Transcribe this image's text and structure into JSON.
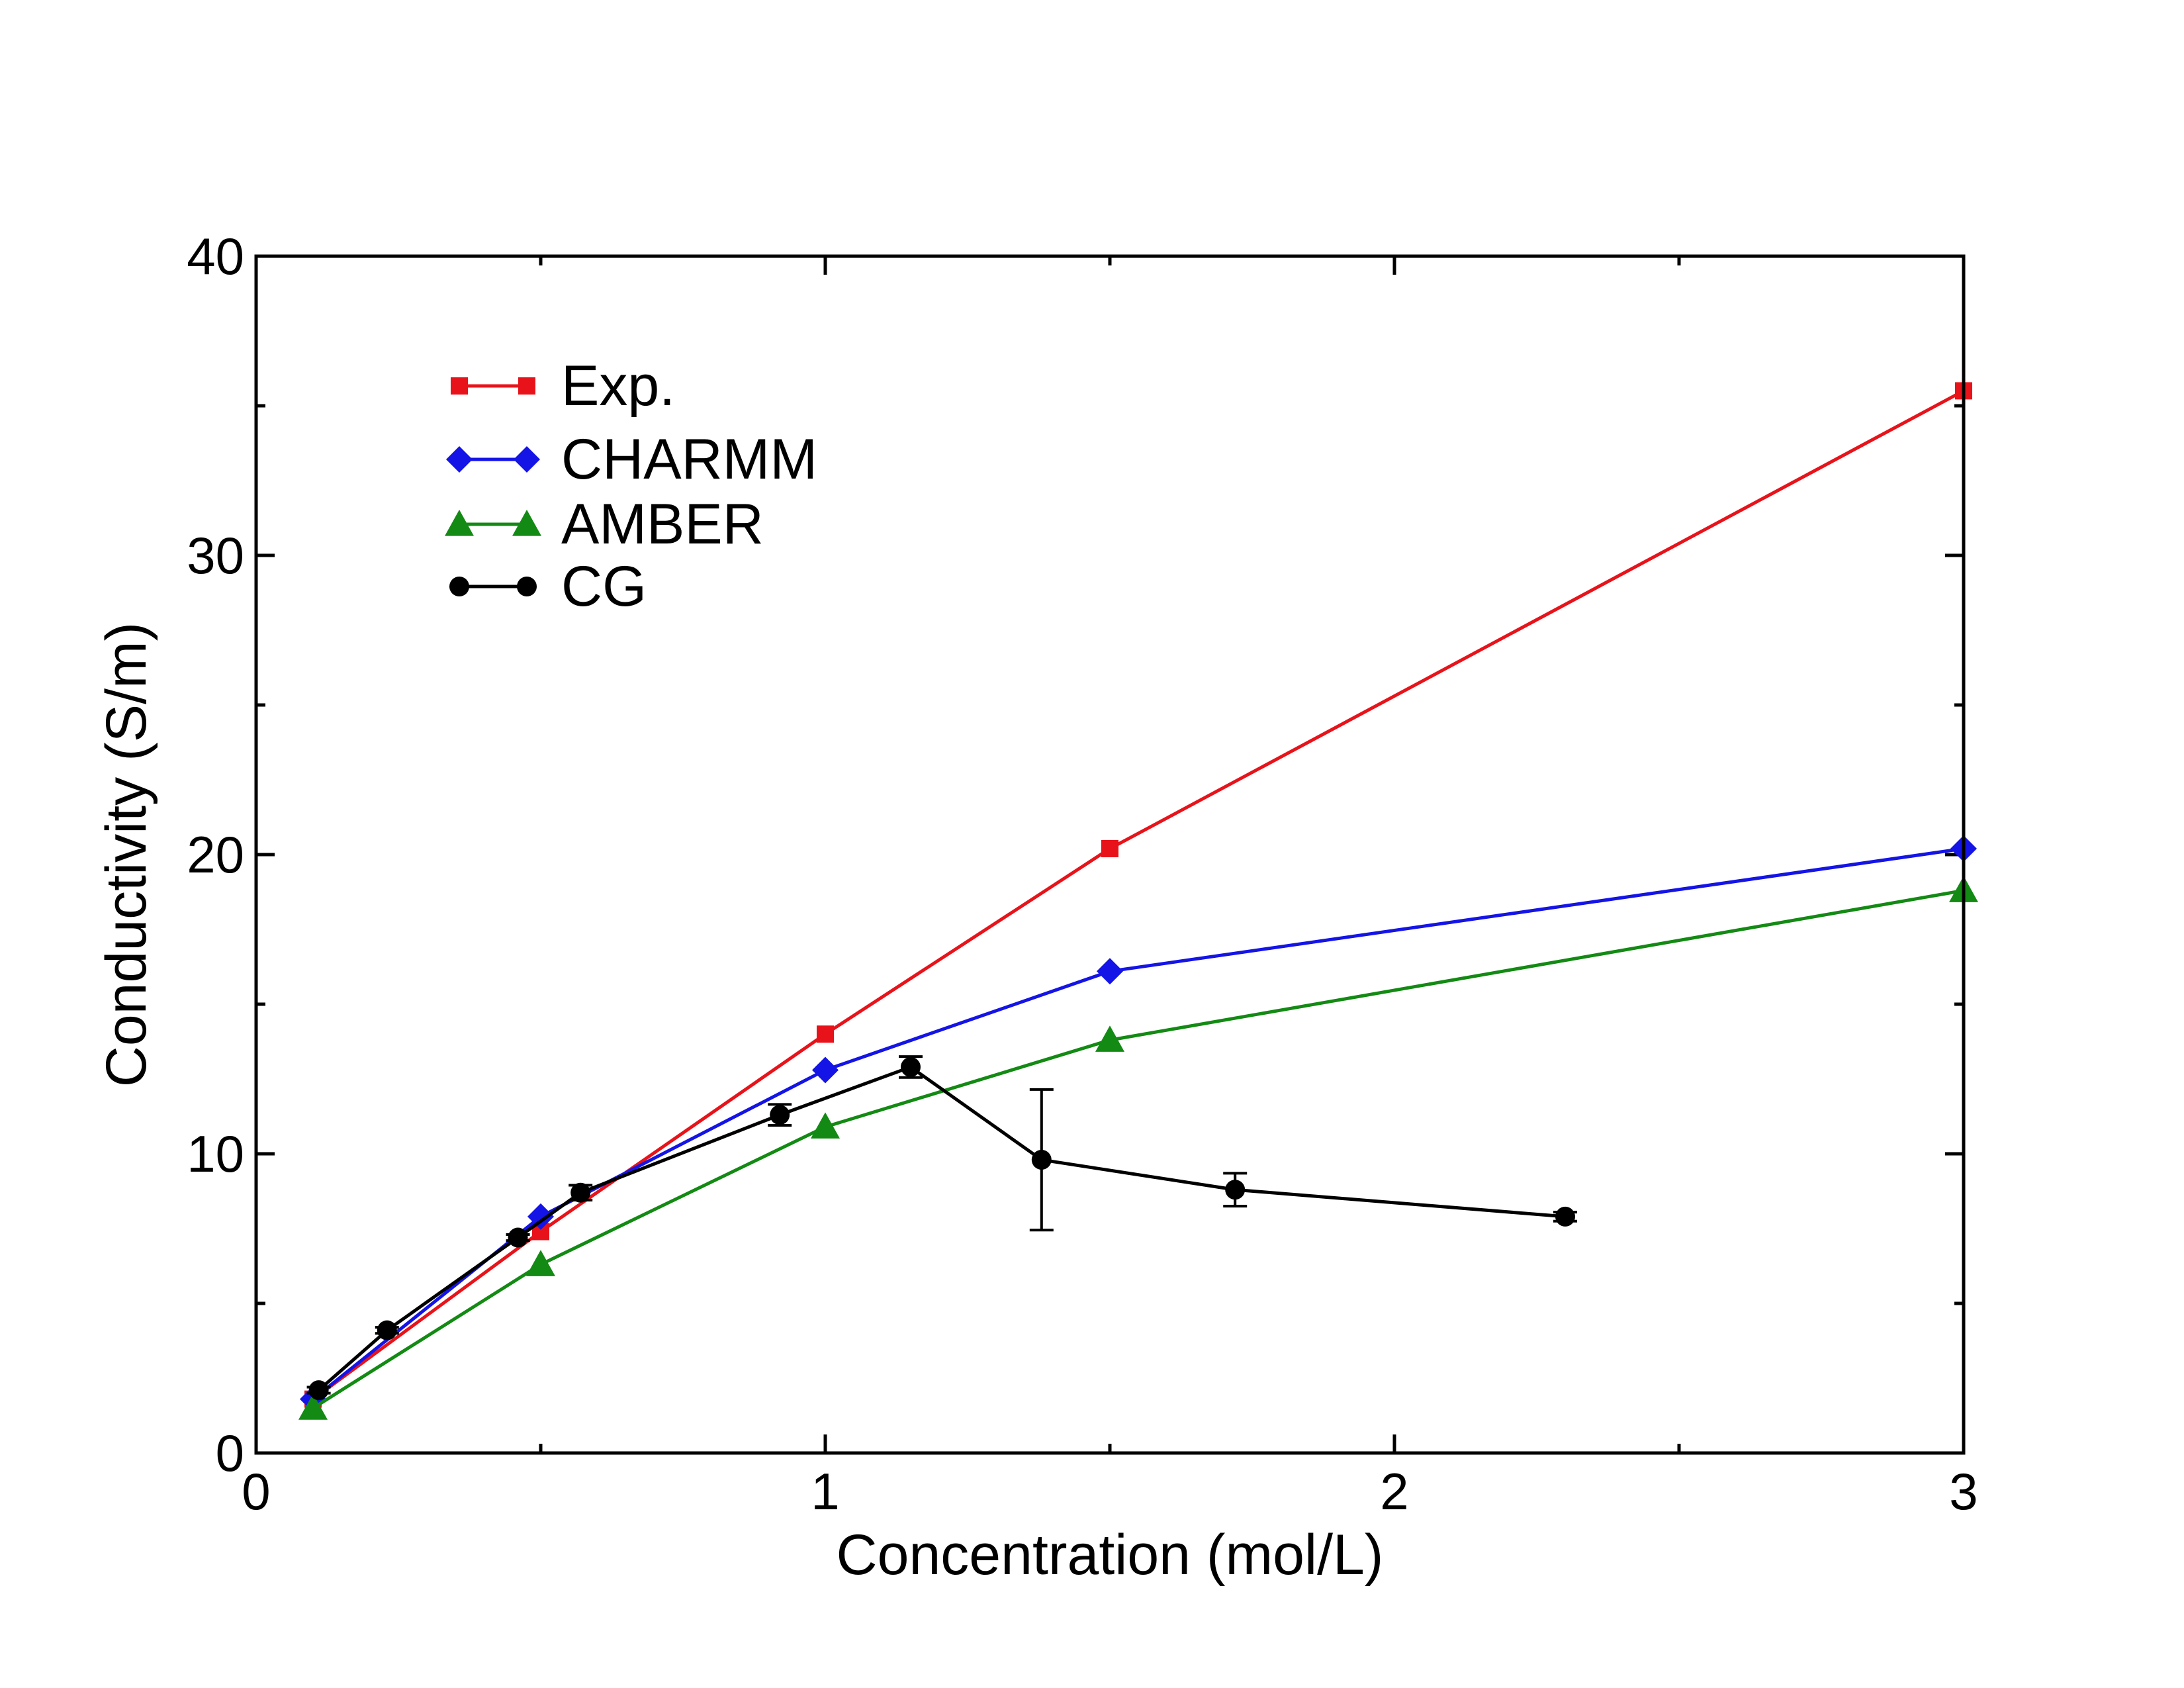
{
  "chart_data": {
    "type": "line",
    "title": "",
    "xlabel": "Concentration (mol/L)",
    "ylabel": "Conductivity (S/m)",
    "xlim": [
      0,
      3
    ],
    "ylim": [
      0,
      40
    ],
    "x_ticks": [
      0,
      1,
      2,
      3
    ],
    "x_tick_labels": [
      "0",
      "1",
      "2",
      "3"
    ],
    "y_ticks": [
      0,
      10,
      20,
      30,
      40
    ],
    "y_tick_labels": [
      "0",
      "10",
      "20",
      "30",
      "40"
    ],
    "grid": false,
    "legend_position": "top-left",
    "series": [
      {
        "name": "Exp.",
        "color": "#e8131a",
        "marker": "square",
        "x": [
          0.1,
          0.5,
          1.0,
          1.5,
          3.0
        ],
        "y": [
          1.8,
          7.4,
          14.0,
          20.2,
          35.5
        ]
      },
      {
        "name": "CHARMM",
        "color": "#1414e6",
        "marker": "diamond",
        "x": [
          0.1,
          0.5,
          1.0,
          1.5,
          3.0
        ],
        "y": [
          1.8,
          7.9,
          12.8,
          16.1,
          20.2
        ]
      },
      {
        "name": "AMBER",
        "color": "#138a13",
        "marker": "triangle",
        "x": [
          0.1,
          0.5,
          1.0,
          1.5,
          3.0
        ],
        "y": [
          1.5,
          6.3,
          10.9,
          13.8,
          18.8
        ]
      },
      {
        "name": "CG",
        "color": "#000000",
        "marker": "circle",
        "x": [
          0.11,
          0.23,
          0.46,
          0.57,
          0.92,
          1.15,
          1.38,
          1.72,
          2.3
        ],
        "y": [
          2.1,
          4.1,
          7.2,
          8.7,
          11.3,
          12.9,
          9.8,
          8.8,
          7.9
        ],
        "y_error": [
          0.1,
          0.1,
          0.1,
          0.25,
          0.35,
          0.35,
          2.35,
          0.55,
          0.15
        ]
      }
    ]
  }
}
